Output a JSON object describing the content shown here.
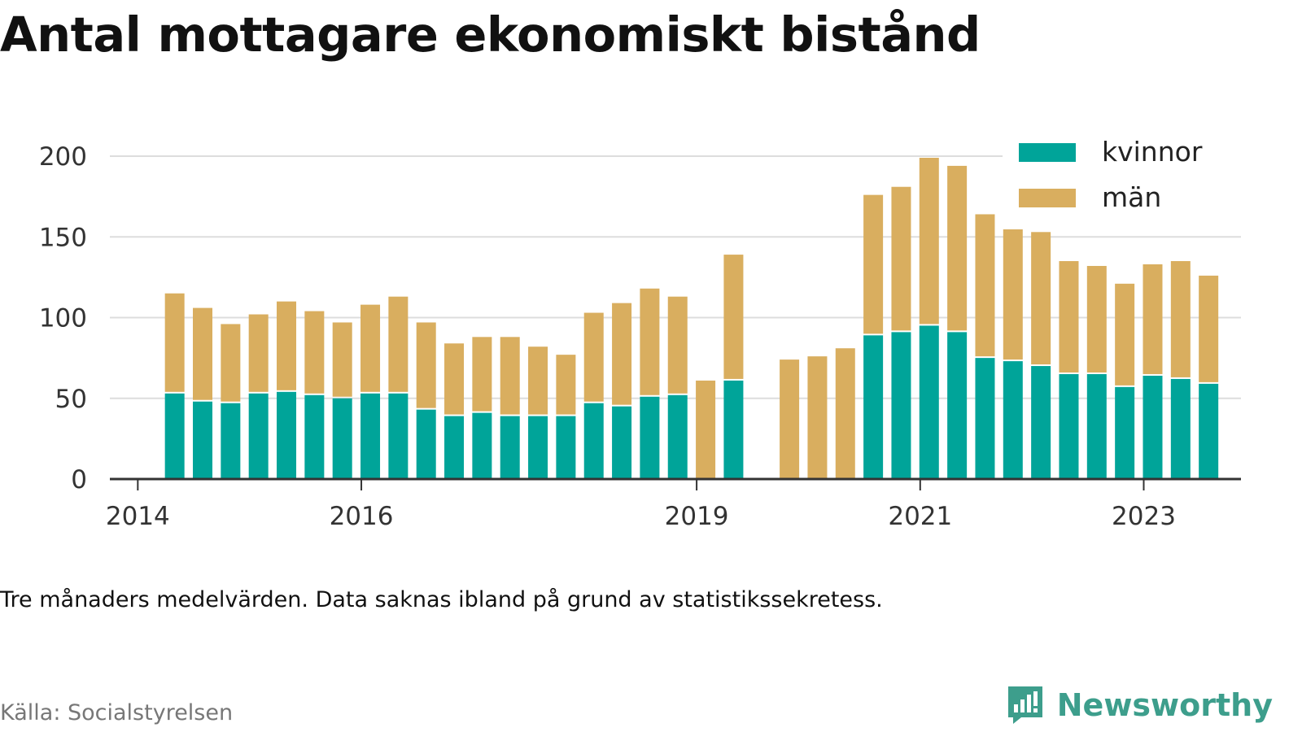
{
  "title": "Antal mottagare ekonomiskt bistånd",
  "note": "Tre månaders medelvärden. Data saknas ibland på grund av statistikssekretess.",
  "source": "Källa: Socialstyrelsen",
  "brand": {
    "name": "Newsworthy",
    "icon": "newsworthy-logo-icon"
  },
  "colors": {
    "kvinnor": "#00a499",
    "man": "#d9ae5f",
    "grid": "#dddddd",
    "axis": "#333333"
  },
  "chart_data": {
    "type": "bar",
    "stacked": true,
    "grid": true,
    "legend_position": "top-right",
    "ylim": [
      0,
      200
    ],
    "yticks": [
      0,
      50,
      100,
      150,
      200
    ],
    "xticks": [
      {
        "label": "2014",
        "at": 2014.0
      },
      {
        "label": "2016",
        "at": 2016.0
      },
      {
        "label": "2019",
        "at": 2019.0
      },
      {
        "label": "2021",
        "at": 2021.0
      },
      {
        "label": "2023",
        "at": 2023.0
      }
    ],
    "x": [
      2014.33,
      2014.58,
      2014.83,
      2015.08,
      2015.33,
      2015.58,
      2015.83,
      2016.08,
      2016.33,
      2016.58,
      2016.83,
      2017.08,
      2017.33,
      2017.58,
      2017.83,
      2018.08,
      2018.33,
      2018.58,
      2018.83,
      2019.08,
      2019.33,
      2019.58,
      2019.83,
      2020.08,
      2020.33,
      2020.58,
      2020.83,
      2021.08,
      2021.33,
      2021.58,
      2021.83,
      2022.08,
      2022.33,
      2022.58,
      2022.83,
      2023.08,
      2023.33,
      2023.58
    ],
    "series": [
      {
        "name": "kvinnor",
        "color": "#00a499",
        "values": [
          53,
          48,
          47,
          53,
          54,
          52,
          50,
          53,
          53,
          43,
          39,
          41,
          39,
          39,
          39,
          47,
          45,
          51,
          52,
          null,
          61,
          null,
          null,
          null,
          null,
          89,
          91,
          95,
          91,
          75,
          73,
          70,
          65,
          65,
          57,
          64,
          62,
          59
        ]
      },
      {
        "name": "män",
        "color": "#d9ae5f",
        "values": [
          62,
          58,
          49,
          49,
          56,
          52,
          47,
          55,
          60,
          54,
          45,
          47,
          49,
          43,
          38,
          56,
          64,
          67,
          61,
          61,
          78,
          null,
          74,
          76,
          81,
          87,
          90,
          104,
          103,
          89,
          88,
          83,
          70,
          67,
          64,
          69,
          73,
          67
        ]
      }
    ]
  }
}
